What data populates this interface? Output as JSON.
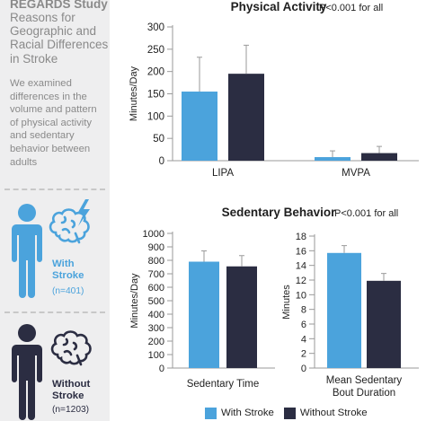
{
  "sidebar": {
    "title": "REGARDS Study",
    "subtitle_lines": [
      "Reasons for",
      "Geographic and",
      "Racial Differences",
      "in Stroke"
    ],
    "description_lines": [
      "We examined",
      "differences in the",
      "volume and pattern",
      "of physical activity",
      "and sedentary",
      "behavior between",
      "adults"
    ],
    "with_stroke": {
      "label_lines": [
        "With",
        "Stroke"
      ],
      "n": "(n=401)",
      "color": "#4ba3dc"
    },
    "without_stroke": {
      "label_lines": [
        "Without",
        "Stroke"
      ],
      "n": "(n=1203)",
      "color": "#2b2d42"
    }
  },
  "legend": {
    "with_stroke": "With Stroke",
    "without_stroke": "Without Stroke"
  },
  "colors": {
    "with_stroke": "#4ba3dc",
    "without_stroke": "#2b2d42",
    "axis": "#9a9a9a",
    "error": "#9a9a9a"
  },
  "chart_data": [
    {
      "type": "bar",
      "title": "Physical Activity",
      "annotation": "P<0.001 for all",
      "ylabel": "Minutes/Day",
      "xlabel": "",
      "ylim": [
        0,
        300
      ],
      "yticks": [
        0,
        50,
        100,
        150,
        200,
        250,
        300
      ],
      "categories": [
        "LIPA",
        "MVPA"
      ],
      "series": [
        {
          "name": "With Stroke",
          "values": [
            155,
            8
          ],
          "errors": [
            77,
            14
          ]
        },
        {
          "name": "Without Stroke",
          "values": [
            195,
            17
          ],
          "errors": [
            64,
            15
          ]
        }
      ]
    },
    {
      "type": "bar",
      "title": "Sedentary Behavior",
      "annotation": "P<0.001 for all",
      "ylabel": "Minutes/Day",
      "xlabel": "",
      "ylim": [
        0,
        1000
      ],
      "yticks": [
        0,
        100,
        200,
        300,
        400,
        500,
        600,
        700,
        800,
        900,
        1000
      ],
      "categories": [
        "Sedentary Time"
      ],
      "series": [
        {
          "name": "With Stroke",
          "values": [
            790
          ],
          "errors": [
            80
          ]
        },
        {
          "name": "Without Stroke",
          "values": [
            755
          ],
          "errors": [
            80
          ]
        }
      ]
    },
    {
      "type": "bar",
      "title": "",
      "annotation": "",
      "ylabel": "Minutes",
      "xlabel": "",
      "ylim": [
        0,
        18
      ],
      "yticks": [
        0,
        2,
        4,
        6,
        8,
        10,
        12,
        14,
        16,
        18
      ],
      "categories": [
        "Mean Sedentary Bout Duration"
      ],
      "category_lines": [
        [
          "Mean Sedentary",
          "Bout Duration"
        ]
      ],
      "series": [
        {
          "name": "With Stroke",
          "values": [
            15.7
          ],
          "errors": [
            1.0
          ]
        },
        {
          "name": "Without Stroke",
          "values": [
            11.9
          ],
          "errors": [
            1.0
          ]
        }
      ]
    }
  ]
}
